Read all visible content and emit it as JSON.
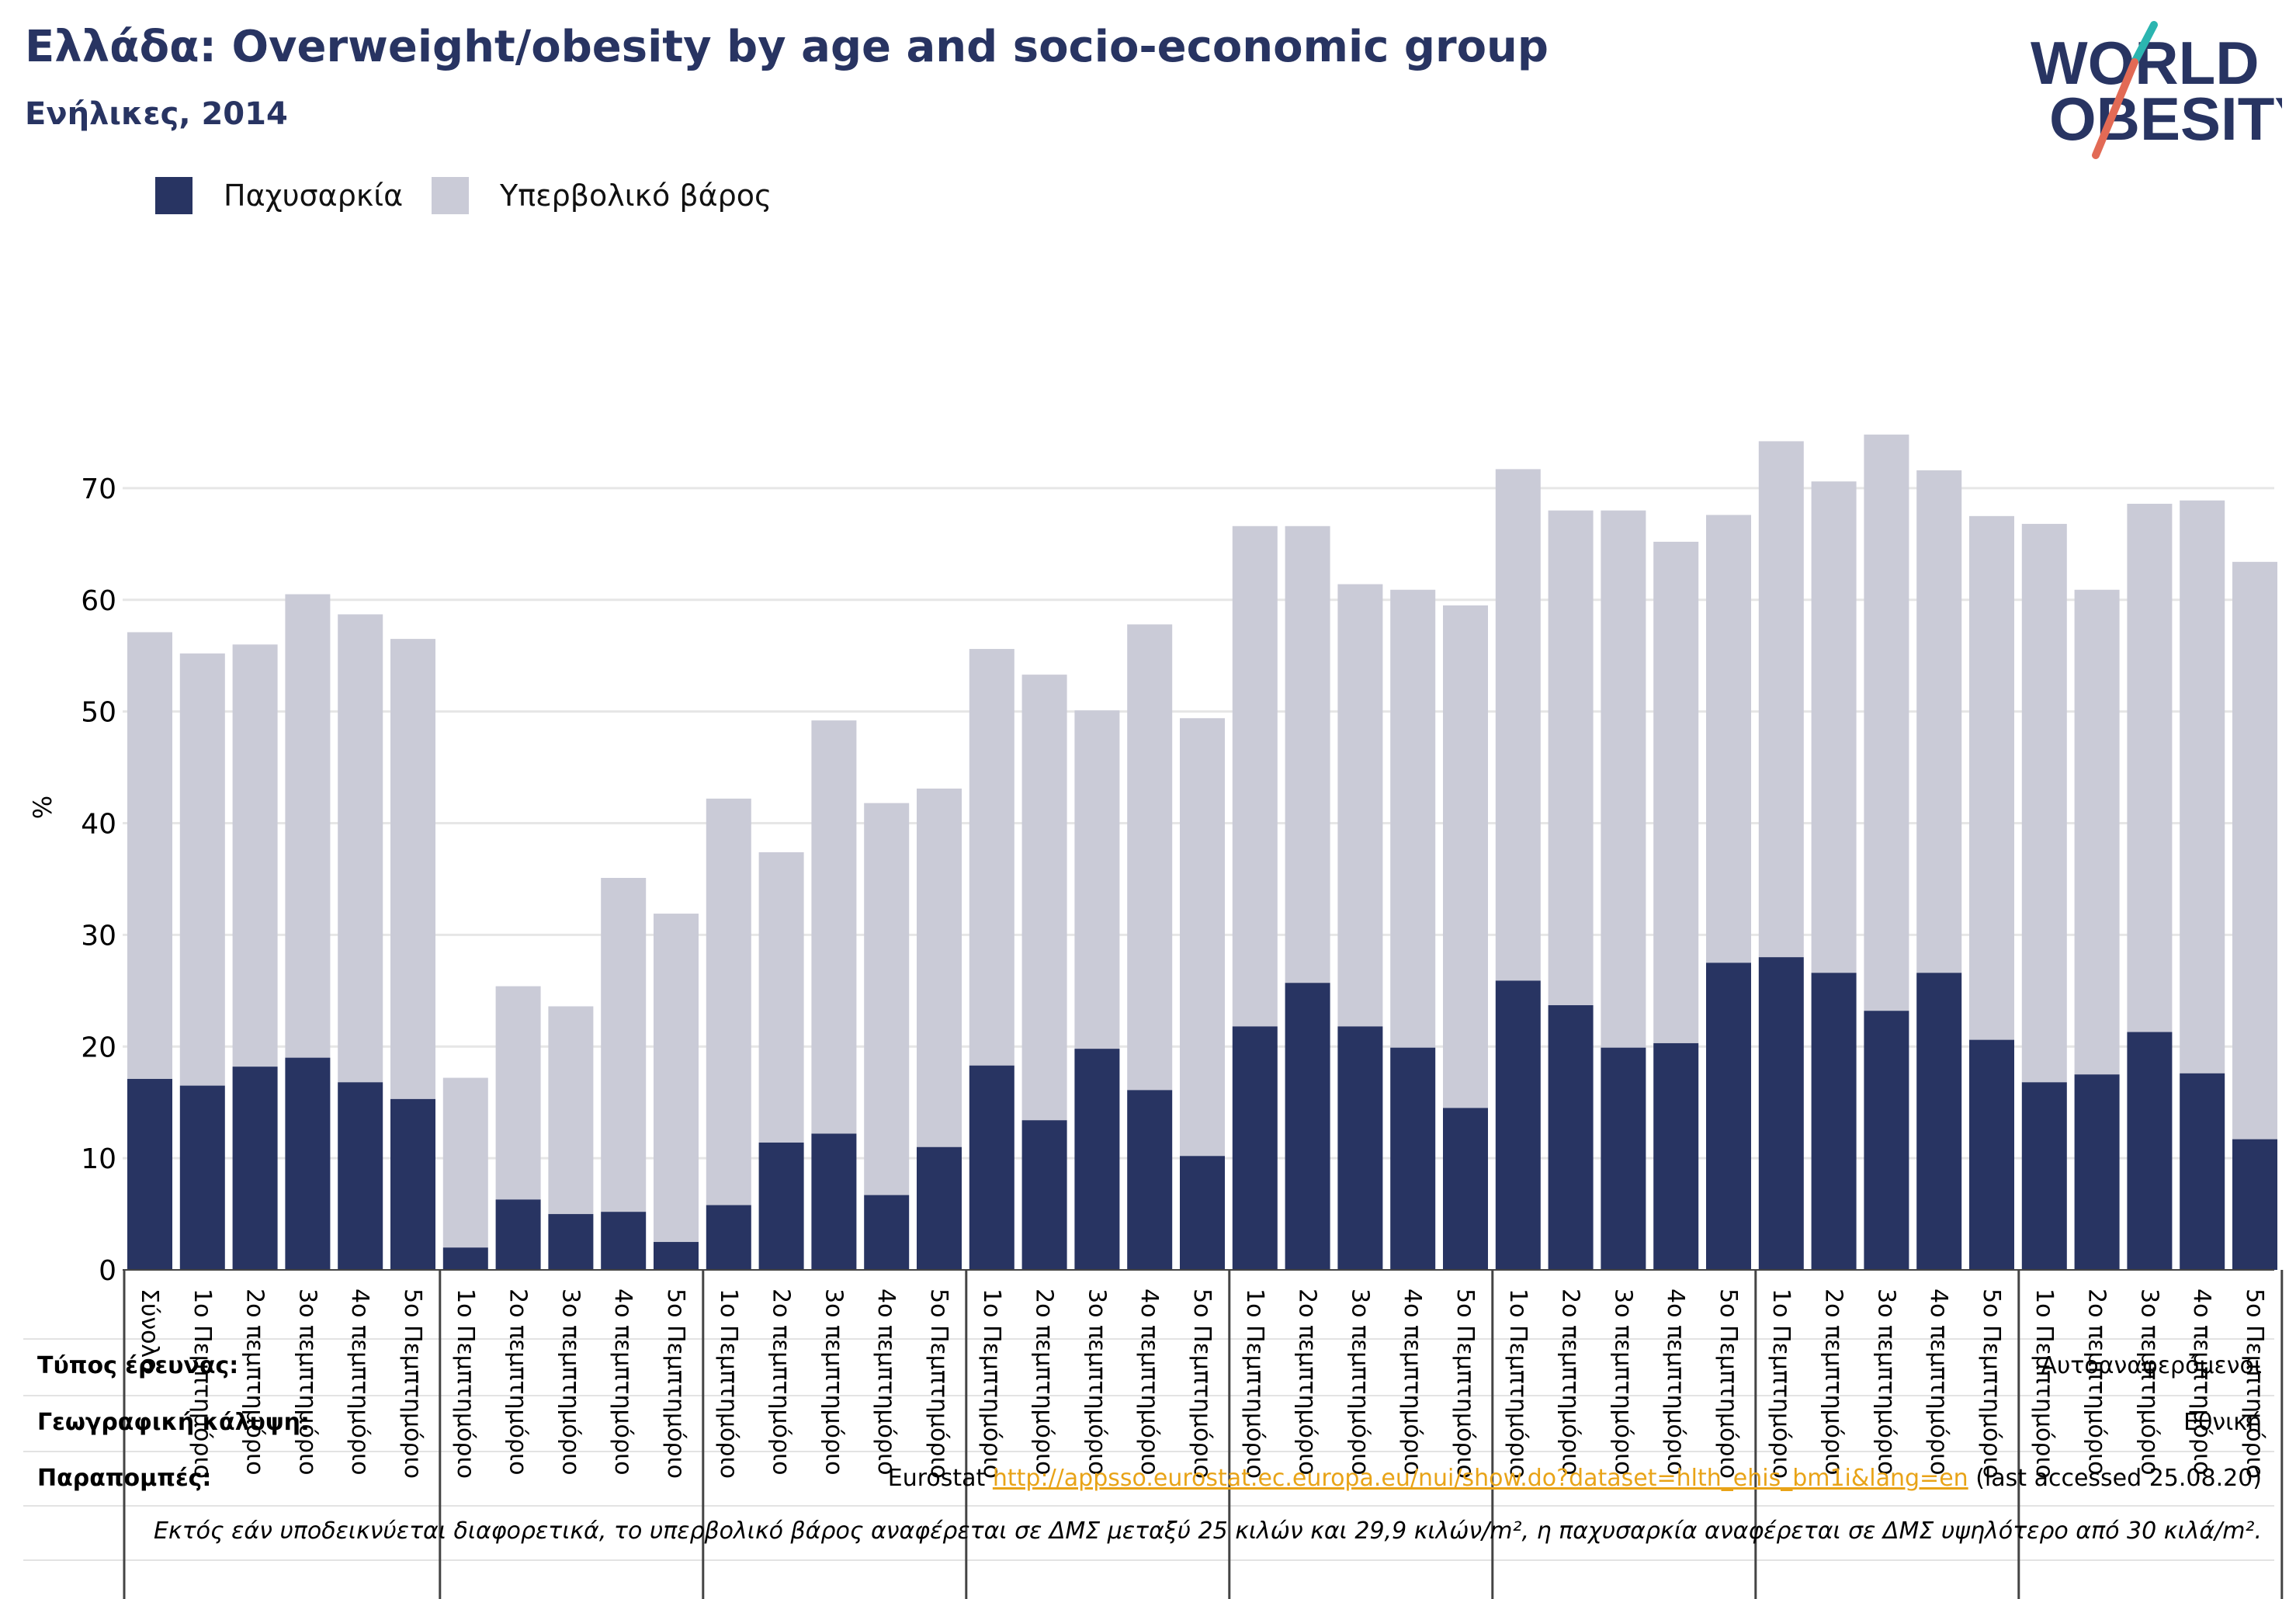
{
  "header": {
    "title": "Ελλάδα: Overweight/obesity by age and socio-economic group",
    "subtitle": "Ενήλικες, 2014"
  },
  "logo": {
    "line1": "WORLD",
    "line2": "OBESITY"
  },
  "colors": {
    "obesity": "#283462",
    "overweight": "#cacbd7",
    "title": "#283462",
    "link": "#e8a317",
    "grid": "#e6e6e6"
  },
  "chart_data": {
    "type": "bar",
    "stacked": true,
    "ylabel": "%",
    "ylim": [
      0,
      80
    ],
    "yticks": [
      0,
      10,
      20,
      30,
      40,
      50,
      60,
      70
    ],
    "grid": true,
    "legend_position": "top-left",
    "series": [
      {
        "name": "Παχυσαρκία",
        "color": "#283462",
        "values": [
          17.1,
          16.5,
          18.2,
          19.0,
          16.8,
          15.3,
          2.0,
          6.3,
          5.0,
          5.2,
          2.5,
          5.8,
          11.4,
          12.2,
          6.7,
          11.0,
          18.3,
          13.4,
          19.8,
          16.1,
          10.2,
          21.8,
          25.7,
          21.8,
          19.9,
          14.5,
          25.9,
          23.7,
          19.9,
          20.3,
          27.5,
          28.0,
          26.6,
          23.2,
          26.6,
          20.6,
          16.8,
          17.5,
          21.3,
          17.6,
          11.7
        ]
      },
      {
        "name": "Υπερβολικό βάρος",
        "color": "#cacbd7",
        "values": [
          40.0,
          38.7,
          37.8,
          41.5,
          41.9,
          41.2,
          15.2,
          19.1,
          18.6,
          29.9,
          29.4,
          36.4,
          26.0,
          37.0,
          35.1,
          32.1,
          37.3,
          39.9,
          30.3,
          41.7,
          39.2,
          44.8,
          40.9,
          39.6,
          41.0,
          45.0,
          45.8,
          44.3,
          48.1,
          44.9,
          40.1,
          46.2,
          44.0,
          51.6,
          45.0,
          46.9,
          50.0,
          43.4,
          47.3,
          51.3,
          51.7
        ]
      }
    ],
    "categories": [
      "Σύνολο",
      "1ο Πεμπτημόριο",
      "2ο πεμπτημόριο",
      "3ο πεμπτημόριο",
      "4ο πεμπτημόριο",
      "5ο Πεμπτημόριο",
      "1ο Πεμπτημόριο",
      "2ο πεμπτημόριο",
      "3ο πεμπτημόριο",
      "4ο πεμπτημόριο",
      "5ο Πεμπτημόριο",
      "1ο Πεμπτημόριο",
      "2ο πεμπτημόριο",
      "3ο πεμπτημόριο",
      "4ο πεμπτημόριο",
      "5ο Πεμπτημόριο",
      "1ο Πεμπτημόριο",
      "2ο πεμπτημόριο",
      "3ο πεμπτημόριο",
      "4ο πεμπτημόριο",
      "5ο Πεμπτημόριο",
      "1ο Πεμπτημόριο",
      "2ο πεμπτημόριο",
      "3ο πεμπτημόριο",
      "4ο πεμπτημόριο",
      "5ο Πεμπτημόριο",
      "1ο Πεμπτημόριο",
      "2ο πεμπτημόριο",
      "3ο πεμπτημόριο",
      "4ο πεμπτημόριο",
      "5ο Πεμπτημόριο",
      "1ο Πεμπτημόριο",
      "2ο πεμπτημόριο",
      "3ο πεμπτημόριο",
      "4ο πεμπτημόριο",
      "5ο Πεμπτημόριο",
      "1ο Πεμπτημόριο",
      "2ο πεμπτημόριο",
      "3ο πεμπτημόριο",
      "4ο πεμπτημόριο",
      "5ο Πεμπτημόριο"
    ],
    "group_sizes": [
      6,
      5,
      5,
      5,
      5,
      5,
      5,
      5
    ]
  },
  "info": {
    "survey_type_label": "Τύπος έρευνας:",
    "survey_type_value": "Αυτοαναφερόμενοι",
    "coverage_label": "Γεωγραφική κάλυψη:",
    "coverage_value": "Εθνική",
    "references_label": "Παραπομπές:",
    "references_prefix": "Eurostat",
    "references_link": "http://appsso.eurostat.ec.europa.eu/nui/show.do?dataset=hlth_ehis_bm1i&lang=en",
    "references_suffix": "(last accessed 25.08.20)",
    "note": "Εκτός εάν υποδεικνύεται διαφορετικά, το υπερβολικό βάρος αναφέρεται σε ΔΜΣ μεταξύ 25 κιλών και 29,9 κιλών/m², η παχυσαρκία αναφέρεται σε ΔΜΣ υψηλότερο από 30 κιλά/m²."
  }
}
